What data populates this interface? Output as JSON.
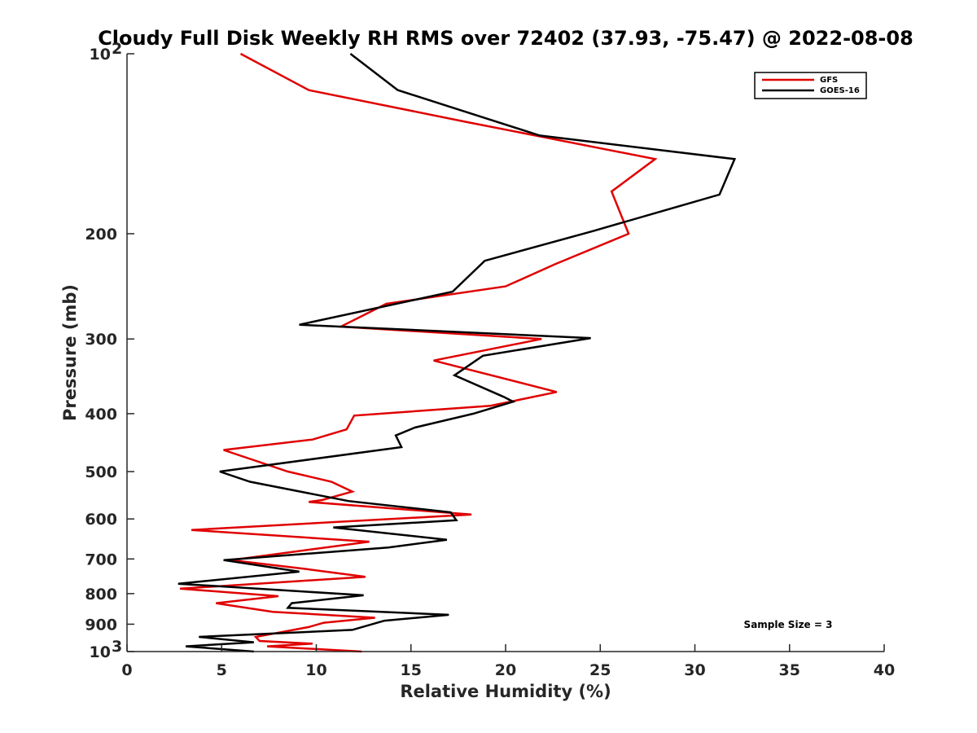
{
  "chart_data": {
    "type": "line",
    "title": "Cloudy Full Disk Weekly RH RMS over 72402 (37.93, -75.47) @ 2022-08-08",
    "xlabel": "Relative Humidity (%)",
    "ylabel": "Pressure (mb)",
    "xlim": [
      0,
      40
    ],
    "ylim": [
      100,
      1000
    ],
    "y_scale": "log",
    "y_reversed": true,
    "x_ticks": [
      "0",
      "5",
      "10",
      "15",
      "20",
      "25",
      "30",
      "35",
      "40"
    ],
    "y_ticks": [
      {
        "value": 100,
        "label": "10",
        "sup": "2"
      },
      {
        "value": 200,
        "label": "200"
      },
      {
        "value": 300,
        "label": "300"
      },
      {
        "value": 400,
        "label": "400"
      },
      {
        "value": 500,
        "label": "500"
      },
      {
        "value": 600,
        "label": "600"
      },
      {
        "value": 700,
        "label": "700"
      },
      {
        "value": 800,
        "label": "800"
      },
      {
        "value": 900,
        "label": "900"
      },
      {
        "value": 1000,
        "label": "10",
        "sup": "3"
      }
    ],
    "grid": false,
    "legend_position": "top-right",
    "annotation": "Sample Size = 3",
    "series": [
      {
        "name": "GFS",
        "color": "#e00000",
        "points": [
          [
            6.0,
            100
          ],
          [
            9.6,
            115
          ],
          [
            17.9,
            130
          ],
          [
            27.9,
            150
          ],
          [
            25.6,
            170
          ],
          [
            26.5,
            200
          ],
          [
            22.6,
            225
          ],
          [
            20.0,
            245
          ],
          [
            13.7,
            262
          ],
          [
            11.3,
            286
          ],
          [
            21.9,
            300
          ],
          [
            16.2,
            326
          ],
          [
            22.7,
            368
          ],
          [
            19.2,
            388
          ],
          [
            12.0,
            403
          ],
          [
            11.6,
            425
          ],
          [
            9.8,
            442
          ],
          [
            5.1,
            460
          ],
          [
            8.5,
            500
          ],
          [
            10.8,
            520
          ],
          [
            11.9,
            540
          ],
          [
            10.3,
            558
          ],
          [
            9.6,
            562
          ],
          [
            18.2,
            590
          ],
          [
            3.4,
            626
          ],
          [
            12.8,
            655
          ],
          [
            5.5,
            703
          ],
          [
            9.5,
            728
          ],
          [
            12.6,
            750
          ],
          [
            2.8,
            785
          ],
          [
            8.0,
            808
          ],
          [
            4.7,
            830
          ],
          [
            7.7,
            858
          ],
          [
            13.1,
            878
          ],
          [
            10.4,
            895
          ],
          [
            9.6,
            910
          ],
          [
            6.8,
            945
          ],
          [
            7.0,
            960
          ],
          [
            9.8,
            970
          ],
          [
            7.4,
            980
          ],
          [
            12.4,
            1000
          ]
        ]
      },
      {
        "name": "GOES-16",
        "color": "#000000",
        "points": [
          [
            11.8,
            100
          ],
          [
            14.3,
            115
          ],
          [
            21.8,
            137
          ],
          [
            32.1,
            150
          ],
          [
            31.3,
            172
          ],
          [
            24.6,
            198
          ],
          [
            18.9,
            222
          ],
          [
            17.2,
            250
          ],
          [
            9.1,
            284
          ],
          [
            24.5,
            299
          ],
          [
            18.8,
            320
          ],
          [
            17.3,
            345
          ],
          [
            19.9,
            375
          ],
          [
            20.4,
            382
          ],
          [
            18.3,
            400
          ],
          [
            15.2,
            422
          ],
          [
            14.2,
            435
          ],
          [
            14.5,
            455
          ],
          [
            4.9,
            500
          ],
          [
            6.5,
            520
          ],
          [
            11.7,
            560
          ],
          [
            17.1,
            585
          ],
          [
            17.4,
            603
          ],
          [
            10.9,
            620
          ],
          [
            16.9,
            650
          ],
          [
            13.8,
            670
          ],
          [
            5.1,
            703
          ],
          [
            9.1,
            735
          ],
          [
            2.7,
            770
          ],
          [
            12.5,
            805
          ],
          [
            8.7,
            830
          ],
          [
            8.5,
            845
          ],
          [
            17.0,
            868
          ],
          [
            13.6,
            888
          ],
          [
            11.9,
            920
          ],
          [
            3.8,
            945
          ],
          [
            6.7,
            965
          ],
          [
            3.1,
            980
          ],
          [
            6.7,
            1000
          ]
        ]
      }
    ]
  }
}
